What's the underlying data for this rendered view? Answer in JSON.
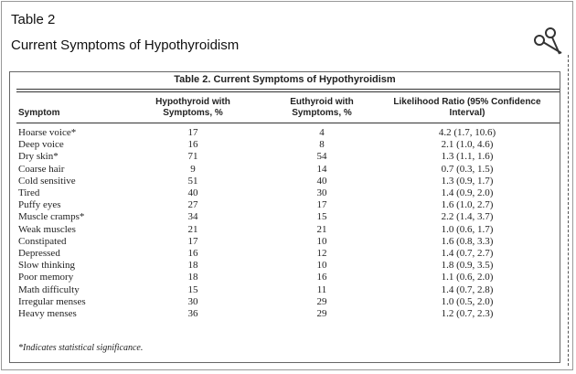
{
  "header": {
    "label": "Table 2",
    "title": "Current Symptoms of Hypothyroidism"
  },
  "table": {
    "title": "Table 2.  Current Symptoms of Hypothyroidism",
    "columns": [
      "Symptom",
      "Hypothyroid with Symptoms, %",
      "Euthyroid with Symptoms, %",
      "Likelihood Ratio (95% Confidence Interval)"
    ],
    "rows": [
      [
        "Hoarse voice*",
        "17",
        "4",
        "4.2 (1.7, 10.6)"
      ],
      [
        "Deep voice",
        "16",
        "8",
        "2.1 (1.0, 4.6)"
      ],
      [
        "Dry skin*",
        "71",
        "54",
        "1.3 (1.1, 1.6)"
      ],
      [
        "Coarse hair",
        "9",
        "14",
        "0.7 (0.3, 1.5)"
      ],
      [
        "Cold sensitive",
        "51",
        "40",
        "1.3 (0.9, 1.7)"
      ],
      [
        "Tired",
        "40",
        "30",
        "1.4 (0.9, 2.0)"
      ],
      [
        "Puffy eyes",
        "27",
        "17",
        "1.6 (1.0, 2.7)"
      ],
      [
        "Muscle cramps*",
        "34",
        "15",
        "2.2 (1.4, 3.7)"
      ],
      [
        "Weak muscles",
        "21",
        "21",
        "1.0 (0.6, 1.7)"
      ],
      [
        "Constipated",
        "17",
        "10",
        "1.6 (0.8, 3.3)"
      ],
      [
        "Depressed",
        "16",
        "12",
        "1.4 (0.7, 2.7)"
      ],
      [
        "Slow thinking",
        "18",
        "10",
        "1.8 (0.9, 3.5)"
      ],
      [
        "Poor memory",
        "18",
        "16",
        "1.1 (0.6, 2.0)"
      ],
      [
        "Math difficulty",
        "15",
        "11",
        "1.4 (0.7, 2.8)"
      ],
      [
        "Irregular menses",
        "30",
        "29",
        "1.0 (0.5, 2.0)"
      ],
      [
        "Heavy menses",
        "36",
        "29",
        "1.2 (0.7, 2.3)"
      ]
    ],
    "footnote": "*Indicates statistical significance."
  }
}
